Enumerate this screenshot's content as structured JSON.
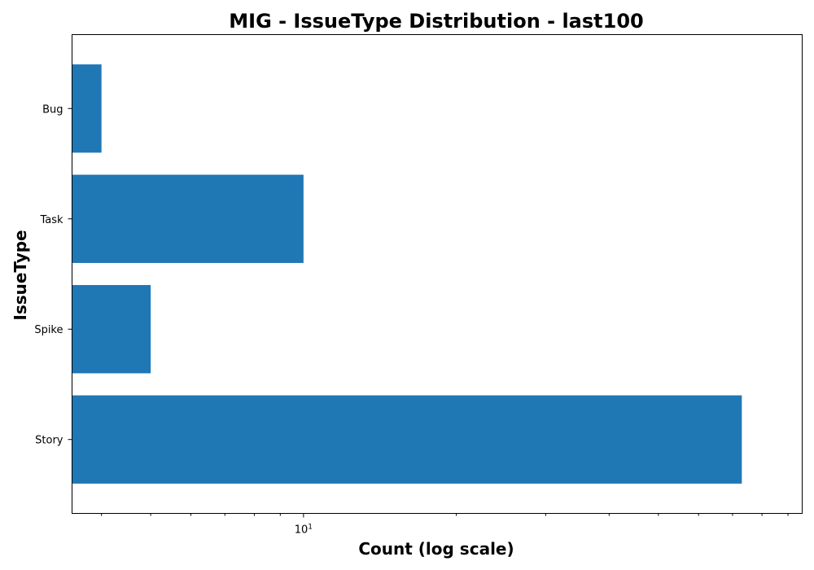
{
  "chart_data": {
    "type": "bar",
    "orientation": "horizontal",
    "title": "MIG - IssueType Distribution - last100",
    "xlabel": "Count (log scale)",
    "ylabel": "IssueType",
    "x_scale": "log",
    "xlim": [
      3.5,
      96
    ],
    "categories": [
      "Bug",
      "Task",
      "Spike",
      "Story"
    ],
    "series": [
      {
        "values": [
          4,
          10,
          5,
          73
        ]
      }
    ],
    "x_major_ticks": [
      10
    ],
    "x_major_tick_labels": [
      "10^1"
    ],
    "x_minor_ticks": [
      4,
      5,
      6,
      7,
      8,
      9,
      20,
      30,
      40,
      50,
      60,
      70,
      80,
      90
    ],
    "grid": false,
    "legend": "none",
    "colors": {
      "bar": "#1f77b4",
      "axes": "#000000",
      "background": "#ffffff"
    }
  }
}
